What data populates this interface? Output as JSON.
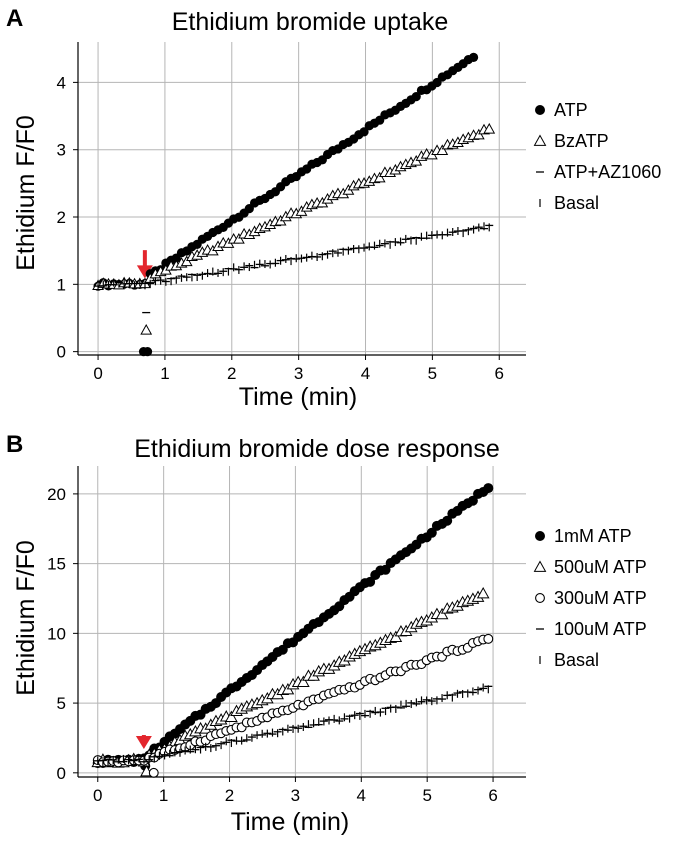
{
  "chart_data": [
    {
      "panel_label": "A",
      "type": "scatter",
      "title": "Ethidium bromide uptake",
      "xlabel": "Time (min)",
      "ylabel": "Ethidium F/F0",
      "xlim": [
        -0.3,
        6.4
      ],
      "ylim": [
        -0.05,
        4.6
      ],
      "xticks": [
        "0",
        "1",
        "2",
        "3",
        "4",
        "5",
        "6"
      ],
      "yticks": [
        "0",
        "1",
        "2",
        "3",
        "4"
      ],
      "grid": true,
      "legend_position": "right",
      "annotation": "red arrow marking agonist addition at ~0.7 min",
      "series": [
        {
          "name": "ATP",
          "marker": "filled-circle",
          "start": 1.0,
          "slope": 0.66,
          "end": 5.65,
          "drop": [
            [
              0.68,
              0.0
            ],
            [
              0.74,
              0.0
            ]
          ]
        },
        {
          "name": "BzATP",
          "marker": "open-triangle",
          "start": 1.0,
          "slope": 0.42,
          "end": 5.9,
          "drop": [
            [
              0.72,
              0.32
            ]
          ]
        },
        {
          "name": "ATP+AZ1060",
          "marker": "dash",
          "start": 1.0,
          "slope": 0.15,
          "end": 5.85,
          "drop": [
            [
              0.72,
              0.58
            ]
          ]
        },
        {
          "name": "Basal",
          "marker": "tick",
          "start": 1.0,
          "slope": 0.15,
          "end": 5.85,
          "drop": []
        }
      ]
    },
    {
      "panel_label": "B",
      "type": "scatter",
      "title": "Ethidium bromide dose response",
      "xlabel": "Time (min)",
      "ylabel": "Ethidium F/F0",
      "xlim": [
        -0.3,
        6.5
      ],
      "ylim": [
        -0.3,
        22.0
      ],
      "xticks": [
        "0",
        "1",
        "2",
        "3",
        "4",
        "5",
        "6"
      ],
      "yticks": [
        "0",
        "5",
        "10",
        "15",
        "20"
      ],
      "grid": true,
      "legend_position": "right",
      "annotation": "red arrow marking agonist addition at ~0.7 min",
      "series": [
        {
          "name": "1mM ATP",
          "marker": "filled-circle",
          "start": 0.8,
          "slope": 3.55,
          "end": 5.95,
          "drop": [
            [
              0.72,
              0.5
            ]
          ]
        },
        {
          "name": "500uM ATP",
          "marker": "open-triangle",
          "start": 0.8,
          "slope": 2.13,
          "end": 5.9,
          "drop": [
            [
              0.74,
              0.1
            ]
          ]
        },
        {
          "name": "300uM ATP",
          "marker": "open-circle",
          "start": 0.8,
          "slope": 1.5,
          "end": 5.95,
          "drop": [
            [
              0.85,
              0.0
            ]
          ]
        },
        {
          "name": "100uM ATP",
          "marker": "dash",
          "start": 0.8,
          "slope": 0.82,
          "end": 6.0,
          "drop": []
        },
        {
          "name": "Basal",
          "marker": "tick",
          "start": 0.8,
          "slope": 0.82,
          "end": 6.0,
          "drop": []
        }
      ]
    }
  ]
}
